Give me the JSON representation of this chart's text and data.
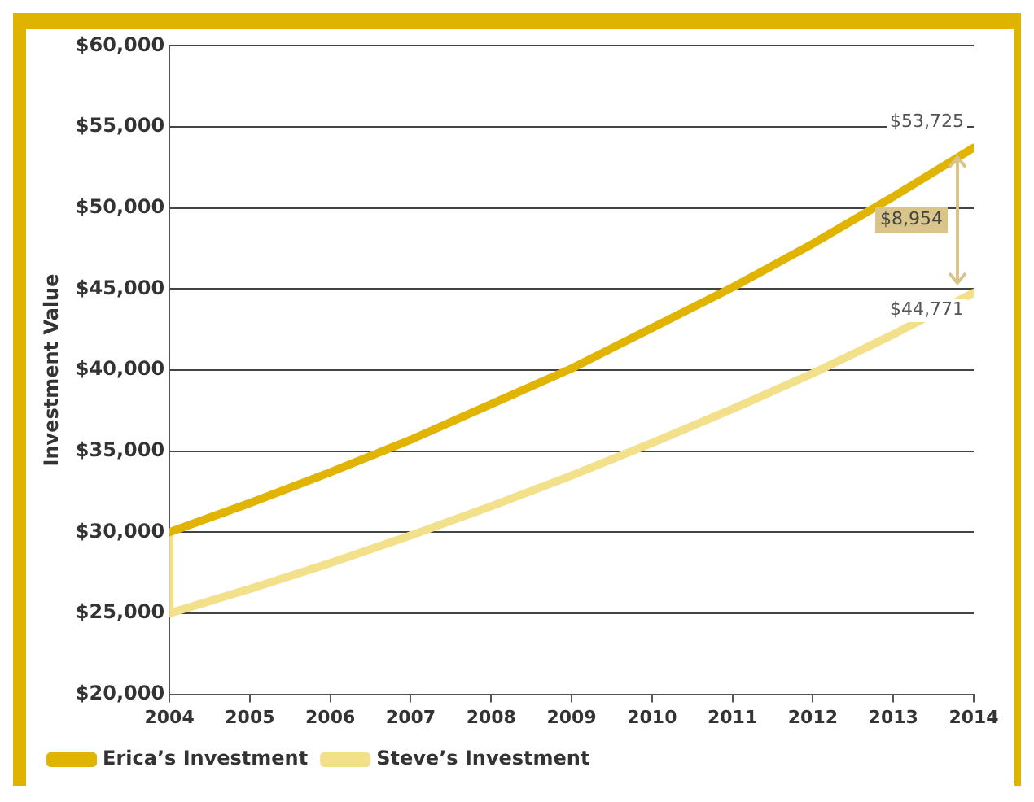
{
  "chart_data": {
    "type": "line",
    "ylabel": "Investment Value",
    "xlim": [
      2004,
      2014
    ],
    "xticks": [
      2004,
      2005,
      2006,
      2007,
      2008,
      2009,
      2010,
      2011,
      2012,
      2013,
      2014
    ],
    "ylim": [
      20000,
      60000
    ],
    "yticks": [
      {
        "value": 20000,
        "label": "$20,000"
      },
      {
        "value": 25000,
        "label": "$25,000"
      },
      {
        "value": 30000,
        "label": "$30,000"
      },
      {
        "value": 35000,
        "label": "$35,000"
      },
      {
        "value": 40000,
        "label": "$40,000"
      },
      {
        "value": 45000,
        "label": "$45,000"
      },
      {
        "value": 50000,
        "label": "$50,000"
      },
      {
        "value": 55000,
        "label": "$55,000"
      },
      {
        "value": 60000,
        "label": "$60,000"
      }
    ],
    "grid": "y",
    "legend": "bottom",
    "marker": "none",
    "line_style": "solid",
    "series": [
      {
        "name": "Erica’s Investment",
        "color": "#e0b400",
        "x": [
          2004,
          2005,
          2006,
          2007,
          2008,
          2009,
          2010,
          2011,
          2012,
          2013,
          2014
        ],
        "values": [
          30000,
          31800,
          33700,
          35700,
          37900,
          40100,
          42600,
          45100,
          47800,
          50700,
          53725
        ]
      },
      {
        "name": "Steve’s Investment",
        "color": "#f2e08a",
        "x": [
          2004,
          2004,
          2005,
          2006,
          2007,
          2008,
          2009,
          2010,
          2011,
          2012,
          2013,
          2014
        ],
        "values": [
          30000,
          25000,
          26500,
          28100,
          29800,
          31600,
          33500,
          35500,
          37600,
          39800,
          42200,
          44771
        ]
      }
    ],
    "annotations": [
      {
        "text": "$53,725",
        "x": 2014,
        "y": 53725
      },
      {
        "text": "$44,771",
        "x": 2014,
        "y": 44771
      },
      "$8,954"
    ]
  }
}
